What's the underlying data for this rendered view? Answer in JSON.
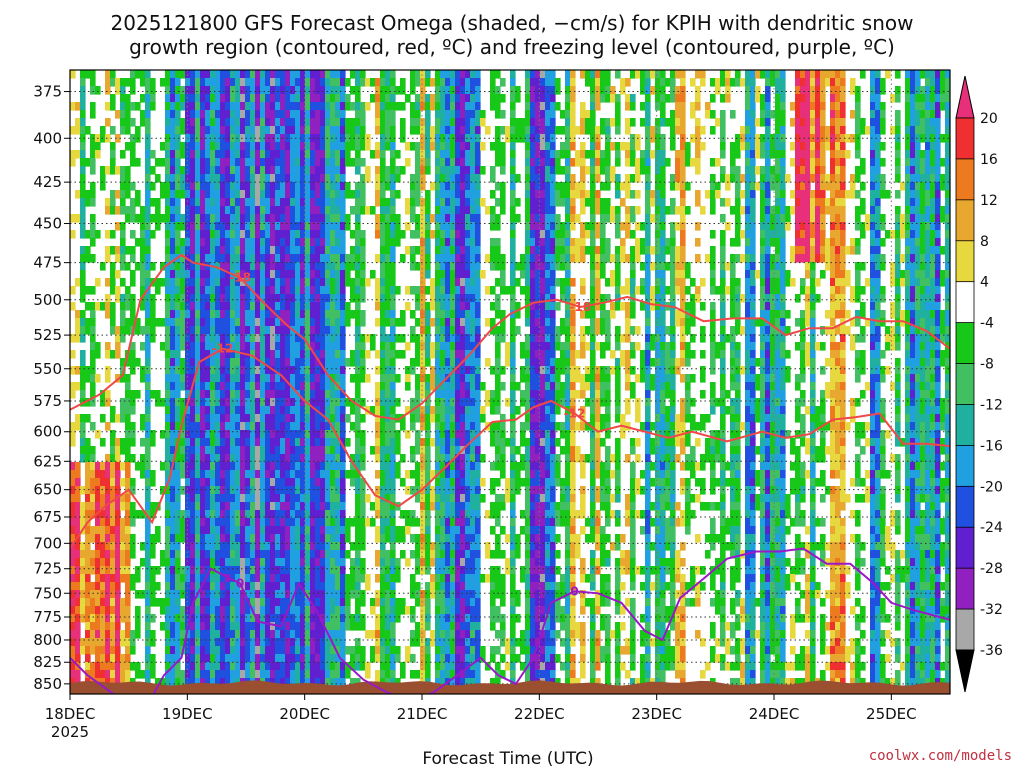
{
  "chart_data": {
    "type": "heatmap",
    "title_line1": "2025121800 GFS Forecast Omega (shaded, −cm/s) for KPIH with dendritic snow",
    "title_line2": "growth region (contoured, red, ºC) and freezing level (contoured, purple, ºC)",
    "xlabel": "Forecast Time (UTC)",
    "credit": "coolwx.com/models",
    "x_range_days": [
      0,
      7.5
    ],
    "x_ticks": [
      {
        "day": 0,
        "label": "18DEC"
      },
      {
        "day": 1,
        "label": "19DEC"
      },
      {
        "day": 2,
        "label": "20DEC"
      },
      {
        "day": 3,
        "label": "21DEC"
      },
      {
        "day": 4,
        "label": "22DEC"
      },
      {
        "day": 5,
        "label": "23DEC"
      },
      {
        "day": 6,
        "label": "24DEC"
      },
      {
        "day": 7,
        "label": "25DEC"
      }
    ],
    "x_year_label": "2025",
    "y_range_hpa": [
      364,
      862
    ],
    "y_ticks": [
      375,
      400,
      425,
      450,
      475,
      500,
      525,
      550,
      575,
      600,
      625,
      650,
      675,
      700,
      725,
      750,
      775,
      800,
      825,
      850
    ],
    "colorbar": {
      "labels": [
        "20",
        "16",
        "12",
        "8",
        "4",
        "-4",
        "-8",
        "-12",
        "-16",
        "-20",
        "-24",
        "-28",
        "-32",
        "-36"
      ],
      "top_color": "#e8307a",
      "bottom_color": "#000000",
      "colors": [
        "#f03030",
        "#ee7a20",
        "#e8a830",
        "#e8d840",
        "#ffffff",
        "#18c818",
        "#40c060",
        "#20b0a0",
        "#20a0e0",
        "#2050e0",
        "#6020d0",
        "#9020c0",
        "#a8a8a8"
      ]
    },
    "terrain_color": "#9a5030",
    "series": [
      {
        "name": "-18",
        "color": "#f04848",
        "days": [
          0,
          0.25,
          0.45,
          0.6,
          0.8,
          0.95,
          1.05,
          1.25,
          1.45,
          1.65,
          1.85,
          2.0,
          2.2,
          2.4,
          2.6,
          2.8,
          3.0,
          3.2,
          3.4,
          3.6,
          3.75,
          3.95,
          4.15,
          4.35,
          4.55,
          4.75,
          4.95,
          5.15,
          5.4,
          5.65,
          5.9,
          6.1,
          6.3,
          6.5,
          6.7,
          6.9,
          7.1,
          7.3,
          7.5
        ],
        "hpa": [
          582,
          570,
          555,
          500,
          478,
          470,
          475,
          478,
          485,
          502,
          518,
          528,
          555,
          575,
          587,
          590,
          577,
          558,
          540,
          520,
          510,
          502,
          500,
          505,
          502,
          498,
          503,
          505,
          515,
          513,
          513,
          525,
          520,
          520,
          512,
          515,
          515,
          522,
          535
        ]
      },
      {
        "name": "-12",
        "color": "#f04848",
        "days": [
          0,
          0.15,
          0.3,
          0.5,
          0.7,
          0.85,
          0.95,
          1.1,
          1.3,
          1.55,
          1.8,
          2.0,
          2.2,
          2.4,
          2.6,
          2.8,
          3.0,
          3.2,
          3.4,
          3.6,
          3.8,
          3.95,
          4.1,
          4.3,
          4.5,
          4.7,
          4.9,
          5.1,
          5.3,
          5.6,
          5.9,
          6.1,
          6.3,
          6.5,
          6.7,
          6.9,
          7.1,
          7.3,
          7.5
        ],
        "hpa": [
          705,
          680,
          665,
          650,
          680,
          640,
          595,
          545,
          535,
          540,
          555,
          575,
          590,
          625,
          655,
          665,
          650,
          630,
          610,
          592,
          590,
          580,
          575,
          585,
          600,
          595,
          600,
          605,
          600,
          608,
          600,
          605,
          602,
          590,
          588,
          585,
          610,
          610,
          612
        ]
      },
      {
        "name": "0",
        "color": "#9a18c8",
        "days": [
          0,
          0.15,
          0.4,
          0.7,
          0.8,
          0.95,
          1.05,
          1.2,
          1.45,
          1.6,
          1.8,
          1.95,
          2.1,
          2.3,
          2.5,
          2.7,
          2.9,
          3.1,
          3.3,
          3.5,
          3.65,
          3.8,
          3.95,
          4.1,
          4.3,
          4.5,
          4.7,
          4.9,
          5.05,
          5.2,
          5.4,
          5.6,
          5.85,
          6.05,
          6.25,
          6.45,
          6.65,
          6.85,
          7.0,
          7.2,
          7.5
        ],
        "hpa": [
          820,
          840,
          865,
          865,
          840,
          820,
          760,
          725,
          740,
          780,
          785,
          740,
          768,
          820,
          845,
          860,
          870,
          860,
          840,
          820,
          840,
          850,
          820,
          760,
          748,
          750,
          760,
          790,
          800,
          755,
          735,
          715,
          708,
          708,
          705,
          720,
          720,
          740,
          760,
          768,
          778
        ]
      }
    ]
  }
}
